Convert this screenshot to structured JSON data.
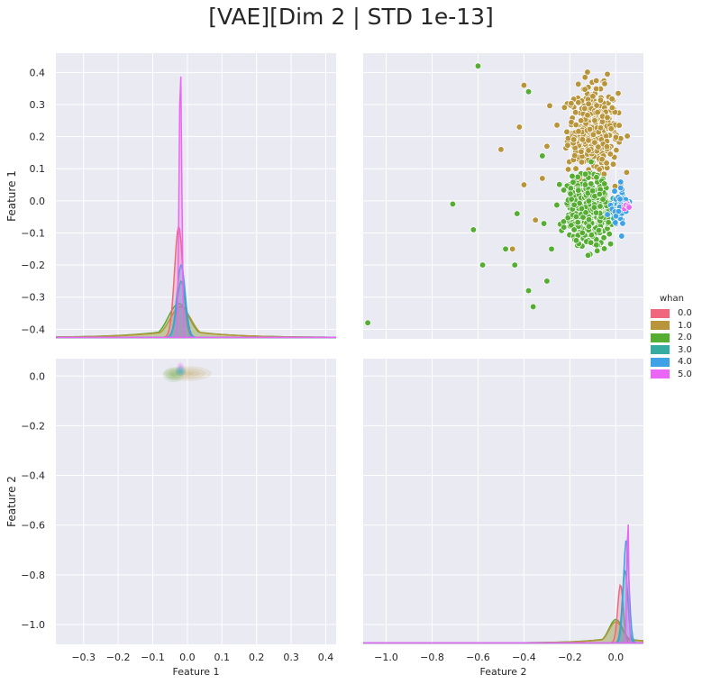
{
  "title": "[VAE][Dim 2 | STD 1e-13]",
  "legend": {
    "title": "whan",
    "entries": [
      {
        "label": "0.0",
        "color": "#f0677d"
      },
      {
        "label": "1.0",
        "color": "#b8953a"
      },
      {
        "label": "2.0",
        "color": "#55ad32"
      },
      {
        "label": "3.0",
        "color": "#36aca0"
      },
      {
        "label": "4.0",
        "color": "#3fa1e6"
      },
      {
        "label": "5.0",
        "color": "#ea66f4"
      }
    ]
  },
  "chart_data": [
    {
      "type": "area",
      "panel": "Feature 1 vs Feature 1 (diagonal KDE)",
      "xlabel": "",
      "ylabel": "Feature 1",
      "xlim": [
        -0.38,
        0.43
      ],
      "ylim": [
        -0.43,
        0.46
      ],
      "yticks": [
        0.4,
        0.3,
        0.2,
        0.1,
        0.0,
        -0.1,
        -0.2,
        -0.3,
        -0.4
      ],
      "grid": true,
      "series": [
        {
          "name": "0.0",
          "peak_x": -0.025,
          "peak_y": -0.08
        },
        {
          "name": "1.0",
          "peak_x": -0.02,
          "peak_y": -0.33
        },
        {
          "name": "2.0",
          "peak_x": -0.025,
          "peak_y": -0.32
        },
        {
          "name": "3.0",
          "peak_x": -0.018,
          "peak_y": -0.25
        },
        {
          "name": "4.0",
          "peak_x": -0.018,
          "peak_y": -0.2
        },
        {
          "name": "5.0",
          "peak_x": -0.02,
          "peak_y": 0.42
        }
      ]
    },
    {
      "type": "scatter",
      "panel": "Feature 2 (x) vs Feature 1 (y)",
      "xlabel": "",
      "ylabel": "",
      "xlim": [
        -1.1,
        0.12
      ],
      "ylim": [
        -0.43,
        0.46
      ],
      "grid": true,
      "series": [
        {
          "name": "1.0",
          "center": [
            -0.1,
            0.22
          ],
          "spread": [
            0.09,
            0.11
          ],
          "outliers": [
            [
              -0.42,
              0.23
            ],
            [
              -0.45,
              -0.15
            ],
            [
              -0.5,
              0.16
            ],
            [
              -0.4,
              0.05
            ],
            [
              -0.35,
              -0.06
            ],
            [
              -0.3,
              0.17
            ],
            [
              -0.32,
              0.07
            ],
            [
              -0.4,
              0.36
            ]
          ]
        },
        {
          "name": "2.0",
          "center": [
            -0.12,
            -0.03
          ],
          "spread": [
            0.08,
            0.08
          ],
          "outliers": [
            [
              -0.6,
              0.42
            ],
            [
              -1.08,
              -0.38
            ],
            [
              -0.71,
              -0.01
            ],
            [
              -0.62,
              -0.09
            ],
            [
              -0.58,
              -0.2
            ],
            [
              -0.48,
              -0.15
            ],
            [
              -0.44,
              -0.2
            ],
            [
              -0.38,
              -0.28
            ],
            [
              -0.36,
              -0.33
            ],
            [
              -0.3,
              -0.25
            ],
            [
              -0.28,
              -0.15
            ],
            [
              -0.43,
              -0.04
            ],
            [
              -0.38,
              0.34
            ],
            [
              -0.32,
              0.14
            ]
          ]
        },
        {
          "name": "3.0",
          "center": [
            0.01,
            -0.02
          ],
          "spread": [
            0.02,
            0.03
          ],
          "outliers": []
        },
        {
          "name": "4.0",
          "center": [
            0.02,
            -0.02
          ],
          "spread": [
            0.03,
            0.05
          ],
          "outliers": []
        },
        {
          "name": "5.0",
          "center": [
            0.05,
            -0.02
          ],
          "spread": [
            0.01,
            0.01
          ],
          "outliers": []
        }
      ]
    },
    {
      "type": "heatmap",
      "panel": "Feature 1 (x) vs Feature 2 (y) (bivariate KDE)",
      "xlabel": "Feature 1",
      "ylabel": "Feature 2",
      "xlim": [
        -0.38,
        0.43
      ],
      "ylim": [
        -1.08,
        0.07
      ],
      "xticks": [
        -0.3,
        -0.2,
        -0.1,
        0.0,
        0.1,
        0.2,
        0.3,
        0.4
      ],
      "yticks": [
        0.0,
        -0.2,
        -0.4,
        -0.6,
        -0.8,
        -1.0
      ],
      "grid": true,
      "series": [
        {
          "name": "1.0",
          "center": [
            0.0,
            0.01
          ],
          "size": [
            0.07,
            0.03
          ]
        },
        {
          "name": "2.0",
          "center": [
            -0.04,
            0.005
          ],
          "size": [
            0.03,
            0.03
          ]
        },
        {
          "name": "3.0",
          "center": [
            -0.02,
            0.02
          ],
          "size": [
            0.015,
            0.02
          ]
        },
        {
          "name": "4.0",
          "center": [
            -0.02,
            0.02
          ],
          "size": [
            0.015,
            0.02
          ]
        },
        {
          "name": "5.0",
          "center": [
            -0.02,
            0.04
          ],
          "size": [
            0.01,
            0.015
          ]
        }
      ]
    },
    {
      "type": "area",
      "panel": "Feature 2 vs Feature 2 (diagonal KDE)",
      "xlabel": "Feature 2",
      "ylabel": "",
      "xlim": [
        -1.1,
        0.12
      ],
      "ylim": [
        -1.08,
        0.07
      ],
      "xticks": [
        -1.0,
        -0.8,
        -0.6,
        -0.4,
        -0.2,
        0.0
      ],
      "grid": true,
      "series": [
        {
          "name": "0.0",
          "peak_x": 0.02,
          "peak_y": -0.84
        },
        {
          "name": "1.0",
          "peak_x": 0.0,
          "peak_y": -0.99
        },
        {
          "name": "2.0",
          "peak_x": 0.0,
          "peak_y": -0.98
        },
        {
          "name": "3.0",
          "peak_x": 0.04,
          "peak_y": -0.78
        },
        {
          "name": "4.0",
          "peak_x": 0.045,
          "peak_y": -0.66
        },
        {
          "name": "5.0",
          "peak_x": 0.052,
          "peak_y": -0.54
        }
      ]
    }
  ]
}
